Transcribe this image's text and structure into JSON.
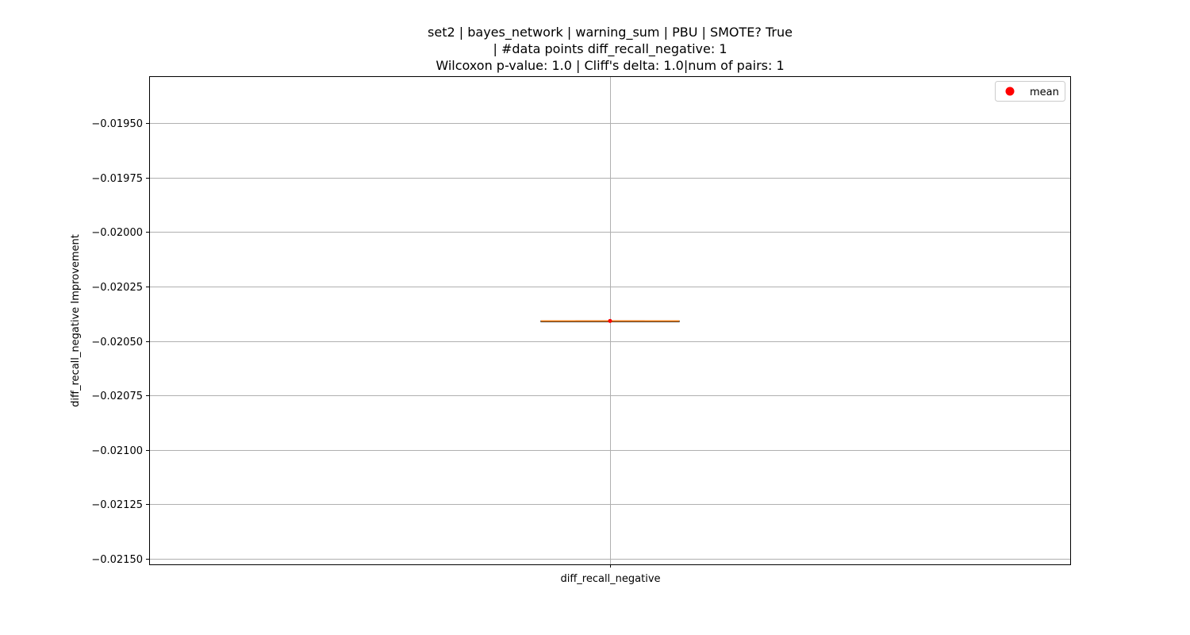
{
  "chart_data": {
    "type": "box",
    "title_lines": [
      "set2 | bayes_network | warning_sum | PBU | SMOTE? True",
      "| #data points diff_recall_negative: 1",
      "Wilcoxon p-value: 1.0 | Cliff's delta: 1.0|num of pairs: 1"
    ],
    "xlabel": "",
    "ylabel": "diff_recall_negative Improvement",
    "categories": [
      "diff_recall_negative"
    ],
    "ylim": [
      -0.021525,
      -0.019285
    ],
    "yticks": [
      -0.0195,
      -0.01975,
      -0.02,
      -0.02025,
      -0.0205,
      -0.02075,
      -0.021,
      -0.02125,
      -0.0215
    ],
    "ytick_labels": [
      "−0.01950",
      "−0.01975",
      "−0.02000",
      "−0.02025",
      "−0.02050",
      "−0.02075",
      "−0.02100",
      "−0.02125",
      "−0.02150"
    ],
    "grid": true,
    "legend": {
      "entries": [
        "mean"
      ],
      "position": "top-right"
    },
    "boxes": [
      {
        "category": "diff_recall_negative",
        "min": -0.020408,
        "q1": -0.020408,
        "median": -0.020408,
        "q3": -0.020408,
        "max": -0.020408,
        "mean": -0.020408
      }
    ],
    "colors": {
      "median": "#ff7f0e",
      "box": "#000000",
      "mean": "#ff0000",
      "grid": "#b0b0b0"
    }
  }
}
